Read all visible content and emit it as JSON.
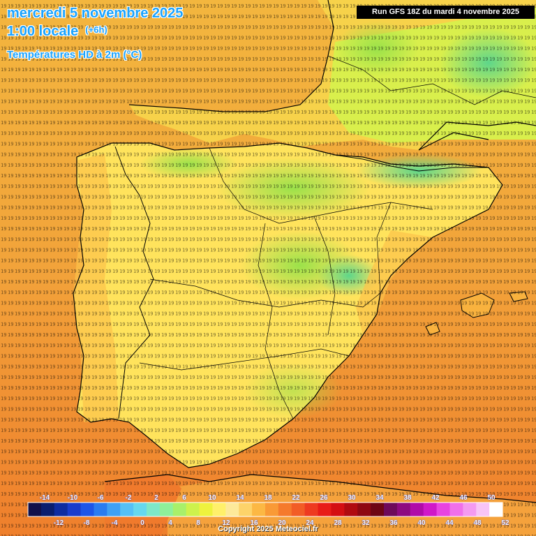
{
  "header": {
    "date": "mercredi 5 novembre 2025",
    "time": "1:00 locale",
    "offset": "(+6h)",
    "parameter": "Températures HD à 2m (°C)"
  },
  "run_info": "Run GFS 18Z du mardi 4 novembre 2025",
  "copyright": "Copyright 2025 Meteociel.fr",
  "map": {
    "region": "Iberian Peninsula",
    "field": "2 m temperature (°C)",
    "value_range": [
      4,
      22
    ]
  },
  "colors": {
    "sea_warm": "#f2a33a",
    "sea_hot": "#ef7a2a",
    "land_mild": "#ffe35c",
    "land_cool": "#9be24a",
    "land_cold": "#5ed68a",
    "title": "#1aa3ff"
  },
  "scale": {
    "top_labels": [
      "-14",
      "-10",
      "-6",
      "-2",
      "2",
      "6",
      "10",
      "14",
      "18",
      "22",
      "26",
      "30",
      "34",
      "38",
      "42",
      "46",
      "50"
    ],
    "bottom_labels": [
      "-12",
      "-8",
      "-4",
      "0",
      "4",
      "8",
      "12",
      "16",
      "20",
      "24",
      "28",
      "32",
      "36",
      "40",
      "44",
      "48",
      "52"
    ],
    "colors": [
      "#10104a",
      "#0a1e6e",
      "#0f2ca0",
      "#1a3ccc",
      "#1e56e8",
      "#2a7cf0",
      "#3fa0f4",
      "#55c0f6",
      "#66d8ee",
      "#7ee8c8",
      "#8ef09a",
      "#a8f06a",
      "#cdf24c",
      "#eef23e",
      "#fff06a",
      "#fde99a",
      "#fdd36a",
      "#fcb844",
      "#f99a36",
      "#f57a2c",
      "#f25c26",
      "#ee3a20",
      "#e81c18",
      "#d40e12",
      "#b00a10",
      "#8e0812",
      "#6e0614",
      "#6e0a5a",
      "#8e0a80",
      "#b00aa8",
      "#d018c8",
      "#e844e0",
      "#f070ea",
      "#f49af0",
      "#f8c4f6",
      "#ffffff"
    ]
  }
}
